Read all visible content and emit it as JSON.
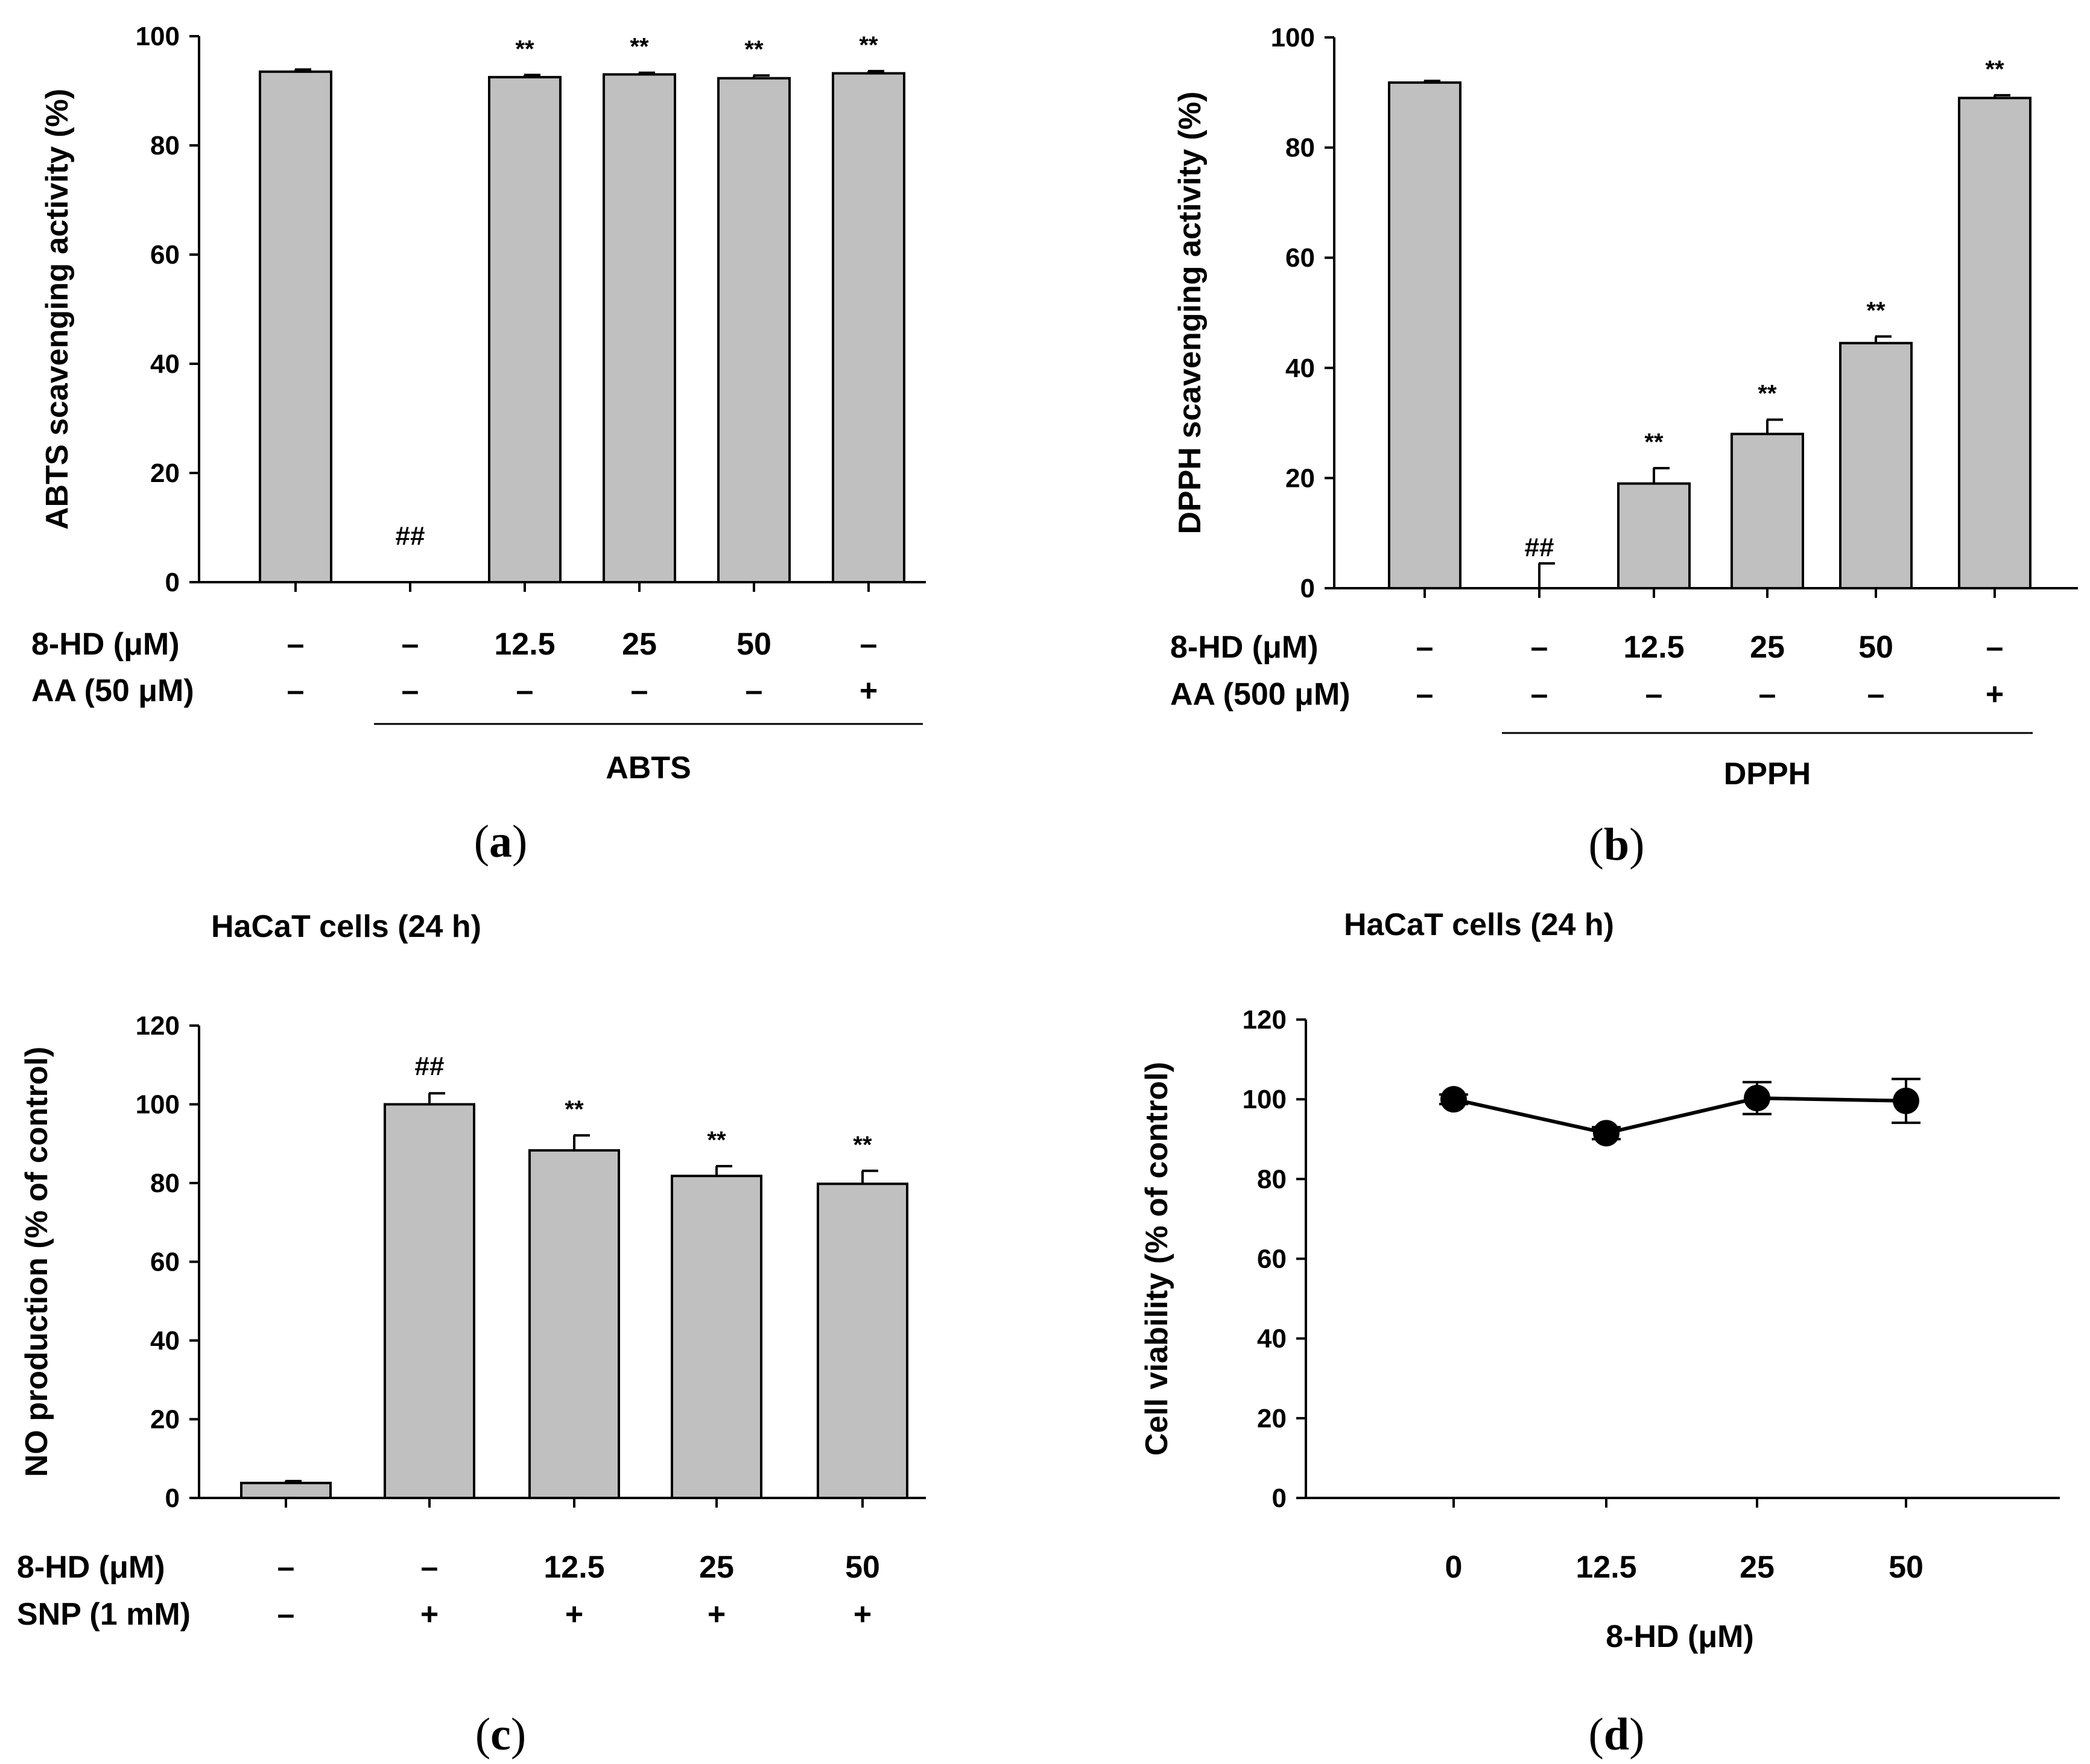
{
  "colors": {
    "bar_fill": "#c0c0c0",
    "stroke": "#000000",
    "background": "#ffffff"
  },
  "chart_data": [
    {
      "id": "a",
      "type": "bar",
      "panel_label": "a",
      "ylabel": "ABTS scavenging activity (%)",
      "ylim": [
        0,
        100
      ],
      "yticks": [
        "0",
        "20",
        "40",
        "60",
        "80",
        "100"
      ],
      "values": [
        93.5,
        0,
        92.5,
        93,
        92.3,
        93.2
      ],
      "errors": [
        0.4,
        0,
        0.4,
        0.3,
        0.5,
        0.4
      ],
      "marks": [
        "",
        "##",
        "**",
        "**",
        "**",
        "**"
      ],
      "row_labels": [
        "8-HD (μM)",
        "AA (50 μM)"
      ],
      "rows": [
        [
          "–",
          "–",
          "12.5",
          "25",
          "50",
          "–"
        ],
        [
          "–",
          "–",
          "–",
          "–",
          "–",
          "+"
        ]
      ],
      "group_label": "ABTS",
      "grid": false
    },
    {
      "id": "b",
      "type": "bar",
      "panel_label": "b",
      "ylabel": "DPPH scavenging activity (%)",
      "ylim": [
        0,
        100
      ],
      "yticks": [
        "0",
        "20",
        "40",
        "60",
        "80",
        "100"
      ],
      "values": [
        91.8,
        0,
        19,
        28,
        44.5,
        89
      ],
      "errors": [
        0.3,
        4.5,
        2.8,
        2.6,
        1.2,
        0.5
      ],
      "marks": [
        "",
        "##",
        "**",
        "**",
        "**",
        "**"
      ],
      "row_labels": [
        "8-HD (μM)",
        "AA (500 μM)"
      ],
      "rows": [
        [
          "–",
          "–",
          "12.5",
          "25",
          "50",
          "–"
        ],
        [
          "–",
          "–",
          "–",
          "–",
          "–",
          "+"
        ]
      ],
      "group_label": "DPPH",
      "grid": false
    },
    {
      "id": "c",
      "type": "bar",
      "panel_label": "c",
      "title": "HaCaT cells (24 h)",
      "ylabel": "NO production (% of control)",
      "ylim": [
        0,
        120
      ],
      "yticks": [
        "0",
        "20",
        "40",
        "60",
        "80",
        "100",
        "120"
      ],
      "values": [
        3.8,
        100,
        88.3,
        81.8,
        79.8
      ],
      "errors": [
        0.5,
        2.8,
        3.8,
        2.5,
        3.3
      ],
      "marks": [
        "",
        "##",
        "**",
        "**",
        "**"
      ],
      "row_labels": [
        "8-HD (μM)",
        "SNP (1 mM)"
      ],
      "rows": [
        [
          "–",
          "–",
          "12.5",
          "25",
          "50"
        ],
        [
          "–",
          "+",
          "+",
          "+",
          "+"
        ]
      ],
      "grid": false
    },
    {
      "id": "d",
      "type": "line",
      "panel_label": "d",
      "title": "HaCaT cells (24 h)",
      "ylabel": "Cell viability (% of control)",
      "xlabel": "8-HD (μM)",
      "ylim": [
        0,
        120
      ],
      "yticks": [
        "0",
        "20",
        "40",
        "60",
        "80",
        "100",
        "120"
      ],
      "categories": [
        "0",
        "12.5",
        "25",
        "50"
      ],
      "values": [
        100,
        91.5,
        100.3,
        99.6
      ],
      "errors": [
        1.2,
        1.5,
        4,
        5.5
      ],
      "grid": false
    }
  ]
}
